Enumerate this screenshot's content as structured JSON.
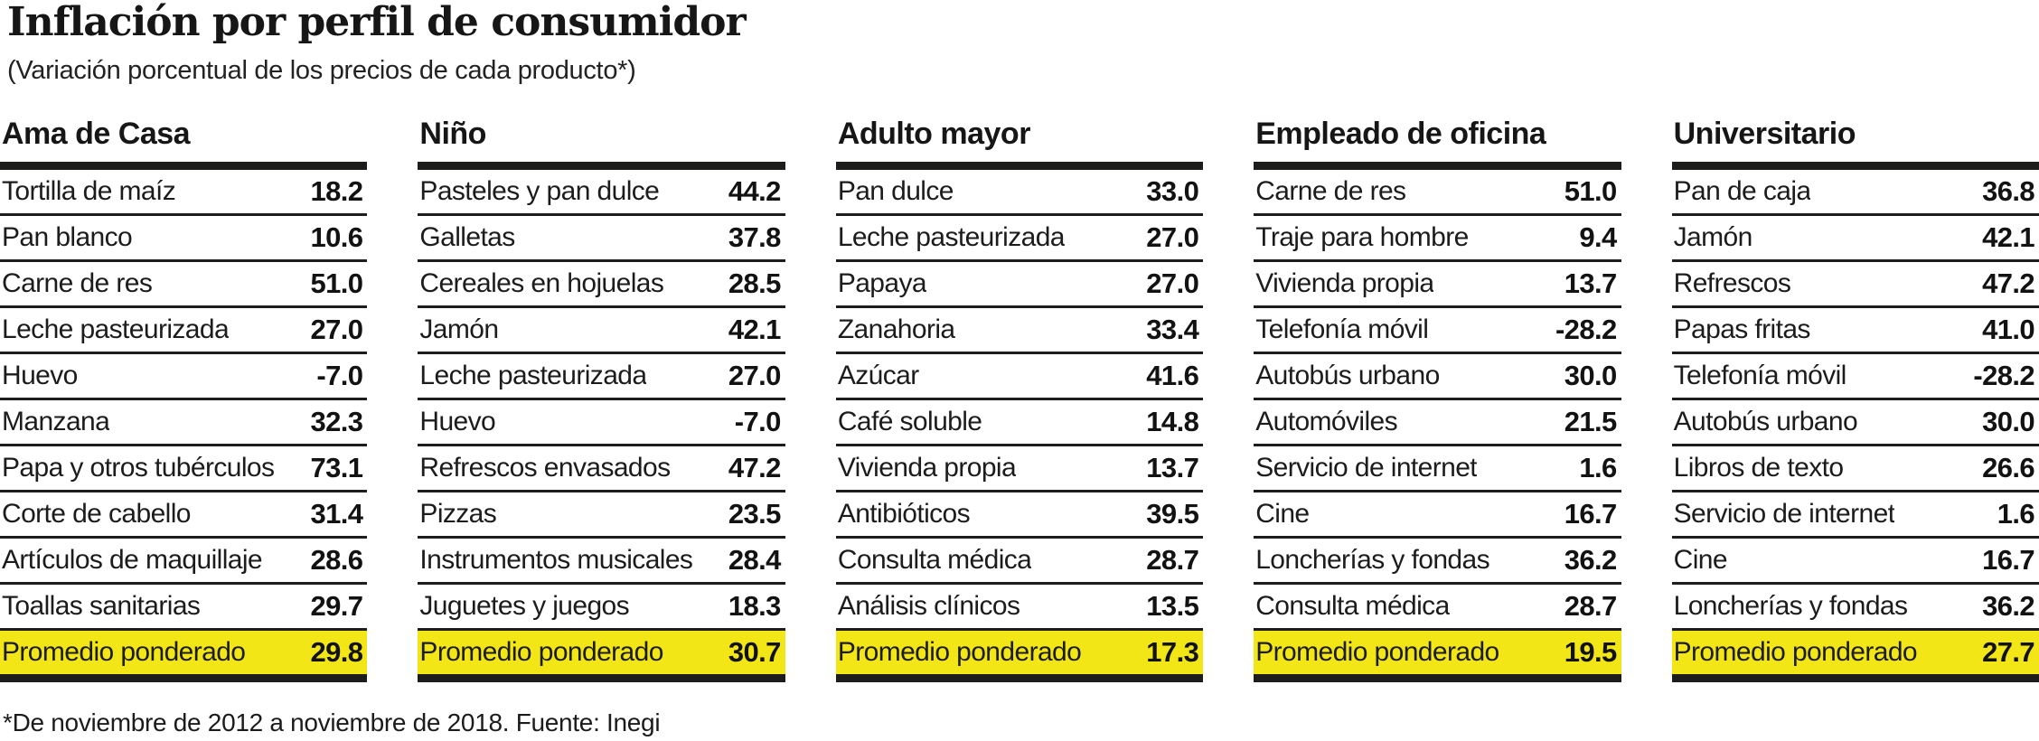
{
  "colors": {
    "highlight_yellow": "#F3E617",
    "text": "#1B1B1B",
    "rule_black": "#1D1D1B",
    "background": "#FFFFFF"
  },
  "chart_data": {
    "type": "table",
    "title": "Inflación por perfil de consumidor",
    "subtitle": "(Variación porcentual de los precios de cada producto*)",
    "footnote": "*De noviembre de 2012 a noviembre de 2018. Fuente: Inegi",
    "average_row_label": "Promedio ponderado",
    "profiles": [
      {
        "name": "Ama de Casa",
        "items": [
          {
            "label": "Tortilla de maíz",
            "value": "18.2"
          },
          {
            "label": "Pan blanco",
            "value": "10.6"
          },
          {
            "label": "Carne de res",
            "value": "51.0"
          },
          {
            "label": "Leche pasteurizada",
            "value": "27.0"
          },
          {
            "label": "Huevo",
            "value": "-7.0"
          },
          {
            "label": "Manzana",
            "value": "32.3"
          },
          {
            "label": "Papa y otros tubérculos",
            "value": "73.1"
          },
          {
            "label": "Corte de cabello",
            "value": "31.4"
          },
          {
            "label": "Artículos de maquillaje",
            "value": "28.6"
          },
          {
            "label": "Toallas sanitarias",
            "value": "29.7"
          }
        ],
        "average": {
          "label": "Promedio ponderado",
          "value": "29.8"
        }
      },
      {
        "name": "Niño",
        "items": [
          {
            "label": "Pasteles y pan dulce",
            "value": "44.2"
          },
          {
            "label": "Galletas",
            "value": "37.8"
          },
          {
            "label": "Cereales en hojuelas",
            "value": "28.5"
          },
          {
            "label": "Jamón",
            "value": "42.1"
          },
          {
            "label": "Leche pasteurizada",
            "value": "27.0"
          },
          {
            "label": "Huevo",
            "value": "-7.0"
          },
          {
            "label": "Refrescos envasados",
            "value": "47.2"
          },
          {
            "label": "Pizzas",
            "value": "23.5"
          },
          {
            "label": "Instrumentos musicales",
            "value": "28.4"
          },
          {
            "label": "Juguetes y juegos",
            "value": "18.3"
          }
        ],
        "average": {
          "label": "Promedio ponderado",
          "value": "30.7"
        }
      },
      {
        "name": "Adulto mayor",
        "items": [
          {
            "label": "Pan dulce",
            "value": "33.0"
          },
          {
            "label": "Leche pasteurizada",
            "value": "27.0"
          },
          {
            "label": "Papaya",
            "value": "27.0"
          },
          {
            "label": "Zanahoria",
            "value": "33.4"
          },
          {
            "label": "Azúcar",
            "value": "41.6"
          },
          {
            "label": "Café soluble",
            "value": "14.8"
          },
          {
            "label": "Vivienda propia",
            "value": "13.7"
          },
          {
            "label": "Antibióticos",
            "value": "39.5"
          },
          {
            "label": "Consulta médica",
            "value": "28.7"
          },
          {
            "label": "Análisis clínicos",
            "value": "13.5"
          }
        ],
        "average": {
          "label": "Promedio ponderado",
          "value": "17.3"
        }
      },
      {
        "name": "Empleado de oficina",
        "items": [
          {
            "label": "Carne de res",
            "value": "51.0"
          },
          {
            "label": "Traje para hombre",
            "value": "9.4"
          },
          {
            "label": "Vivienda propia",
            "value": "13.7"
          },
          {
            "label": "Telefonía móvil",
            "value": "-28.2"
          },
          {
            "label": "Autobús urbano",
            "value": "30.0"
          },
          {
            "label": "Automóviles",
            "value": "21.5"
          },
          {
            "label": "Servicio de internet",
            "value": "1.6"
          },
          {
            "label": "Cine",
            "value": "16.7"
          },
          {
            "label": "Loncherías y fondas",
            "value": "36.2"
          },
          {
            "label": "Consulta médica",
            "value": "28.7"
          }
        ],
        "average": {
          "label": "Promedio ponderado",
          "value": "19.5"
        }
      },
      {
        "name": "Universitario",
        "items": [
          {
            "label": "Pan de caja",
            "value": "36.8"
          },
          {
            "label": "Jamón",
            "value": "42.1"
          },
          {
            "label": "Refrescos",
            "value": "47.2"
          },
          {
            "label": "Papas fritas",
            "value": "41.0"
          },
          {
            "label": "Telefonía móvil",
            "value": "-28.2"
          },
          {
            "label": "Autobús urbano",
            "value": "30.0"
          },
          {
            "label": "Libros de texto",
            "value": "26.6"
          },
          {
            "label": "Servicio de internet",
            "value": "1.6"
          },
          {
            "label": "Cine",
            "value": "16.7"
          },
          {
            "label": "Loncherías y fondas",
            "value": "36.2"
          }
        ],
        "average": {
          "label": "Promedio ponderado",
          "value": "27.7"
        }
      }
    ]
  }
}
